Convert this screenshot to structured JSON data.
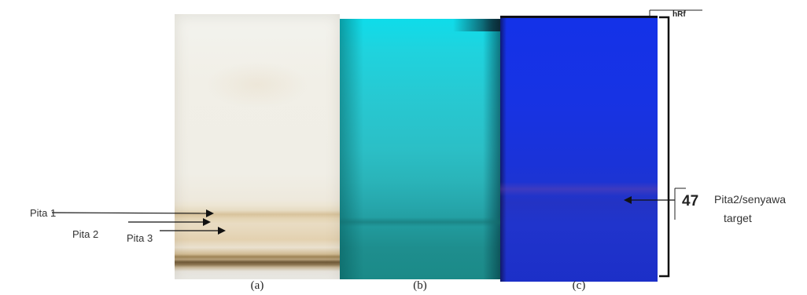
{
  "figure": {
    "panels": [
      {
        "id": "a",
        "caption": "(a)"
      },
      {
        "id": "b",
        "caption": "(b)"
      },
      {
        "id": "c",
        "caption": "(c)"
      }
    ],
    "band_labels": [
      "Pita 1",
      "Pita 2",
      "Pita 3"
    ],
    "hrf_label": "hRf",
    "hrf_value": "47",
    "target_label_line1": "Pita2/senyawa",
    "target_label_line2": "target"
  }
}
